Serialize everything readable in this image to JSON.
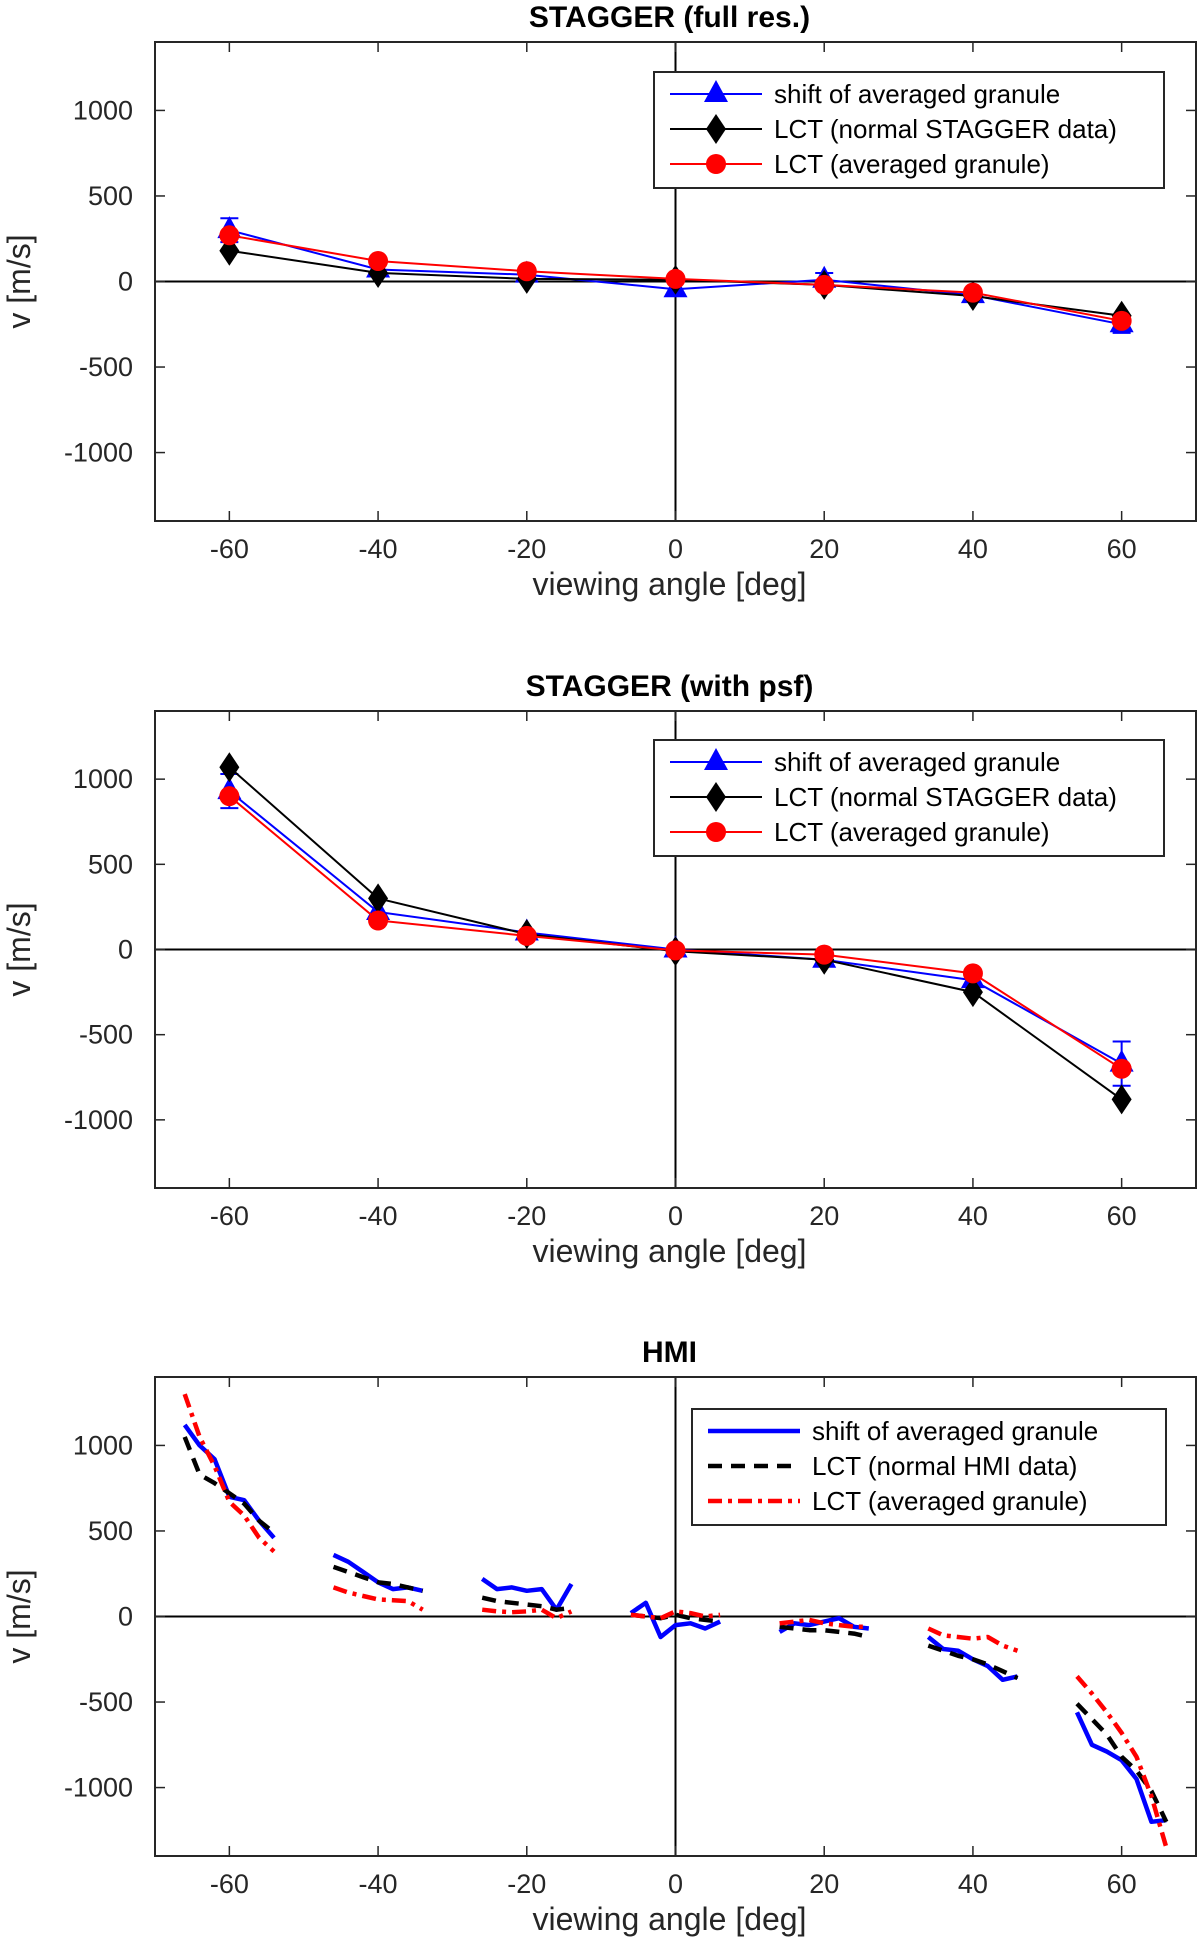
{
  "colors": {
    "blue": "#0000ff",
    "black": "#000000",
    "red": "#ff0000",
    "axis": "#262626"
  },
  "chart_data": [
    {
      "type": "line",
      "title": "STAGGER (full res.)",
      "xlabel": "viewing angle [deg]",
      "ylabel": "v [m/s]",
      "xlim": [
        -70,
        70
      ],
      "ylim": [
        -1400,
        1400
      ],
      "xticks": [
        -60,
        -40,
        -20,
        0,
        20,
        40,
        60
      ],
      "yticks": [
        -1000,
        -500,
        0,
        500,
        1000
      ],
      "xtick_labels": [
        "-60",
        "-40",
        "-20",
        "0",
        "20",
        "40",
        "60"
      ],
      "ytick_labels": [
        "-1000",
        "-500",
        "0",
        "500",
        "1000"
      ],
      "legend_position": "top-right",
      "series": [
        {
          "name": "shift of averaged granule",
          "color": "#0000ff",
          "marker": "triangle",
          "x": [
            -60,
            -40,
            -20,
            0,
            20,
            40,
            60
          ],
          "y": [
            300,
            70,
            40,
            -45,
            10,
            -80,
            -250
          ],
          "err": [
            70,
            0,
            0,
            0,
            40,
            0,
            50
          ]
        },
        {
          "name": "LCT (normal STAGGER data)",
          "color": "#000000",
          "marker": "diamond",
          "x": [
            -60,
            -40,
            -20,
            0,
            20,
            40,
            60
          ],
          "y": [
            180,
            50,
            15,
            10,
            -20,
            -85,
            -200
          ],
          "err": []
        },
        {
          "name": "LCT (averaged granule)",
          "color": "#ff0000",
          "marker": "circle",
          "x": [
            -60,
            -40,
            -20,
            0,
            20,
            40,
            60
          ],
          "y": [
            270,
            120,
            60,
            15,
            -20,
            -65,
            -230
          ],
          "err": []
        }
      ]
    },
    {
      "type": "line",
      "title": "STAGGER (with psf)",
      "xlabel": "viewing angle [deg]",
      "ylabel": "v [m/s]",
      "xlim": [
        -70,
        70
      ],
      "ylim": [
        -1400,
        1400
      ],
      "xticks": [
        -60,
        -40,
        -20,
        0,
        20,
        40,
        60
      ],
      "yticks": [
        -1000,
        -500,
        0,
        500,
        1000
      ],
      "xtick_labels": [
        "-60",
        "-40",
        "-20",
        "0",
        "20",
        "40",
        "60"
      ],
      "ytick_labels": [
        "-1000",
        "-500",
        "0",
        "500",
        "1000"
      ],
      "legend_position": "top-right",
      "series": [
        {
          "name": "shift of averaged granule",
          "color": "#0000ff",
          "marker": "triangle",
          "x": [
            -60,
            -40,
            -20,
            0,
            20,
            40,
            60
          ],
          "y": [
            930,
            220,
            100,
            0,
            -60,
            -180,
            -670
          ],
          "err": [
            100,
            0,
            0,
            0,
            0,
            0,
            130
          ]
        },
        {
          "name": "LCT (normal STAGGER data)",
          "color": "#000000",
          "marker": "diamond",
          "x": [
            -60,
            -40,
            -20,
            0,
            20,
            40,
            60
          ],
          "y": [
            1070,
            300,
            90,
            -10,
            -60,
            -250,
            -880
          ],
          "err": []
        },
        {
          "name": "LCT (averaged granule)",
          "color": "#ff0000",
          "marker": "circle",
          "x": [
            -60,
            -40,
            -20,
            0,
            20,
            40,
            60
          ],
          "y": [
            900,
            170,
            80,
            -5,
            -30,
            -140,
            -700
          ],
          "err": []
        }
      ]
    },
    {
      "type": "line",
      "title": "HMI",
      "xlabel": "viewing angle [deg]",
      "ylabel": "v [m/s]",
      "xlim": [
        -70,
        70
      ],
      "ylim": [
        -1400,
        1400
      ],
      "xticks": [
        -60,
        -40,
        -20,
        0,
        20,
        40,
        60
      ],
      "yticks": [
        -1000,
        -500,
        0,
        500,
        1000
      ],
      "xtick_labels": [
        "-60",
        "-40",
        "-20",
        "0",
        "20",
        "40",
        "60"
      ],
      "ytick_labels": [
        "-1000",
        "-500",
        "0",
        "500",
        "1000"
      ],
      "legend_position": "top-right",
      "series": [
        {
          "name": "shift of averaged granule",
          "color": "#0000ff",
          "dash": "solid",
          "segments": [
            [
              [
                -66,
                1120
              ],
              [
                -64,
                1000
              ],
              [
                -62,
                920
              ],
              [
                -60,
                700
              ],
              [
                -58,
                680
              ],
              [
                -56,
                560
              ],
              [
                -54,
                460
              ]
            ],
            [
              [
                -46,
                360
              ],
              [
                -44,
                320
              ],
              [
                -42,
                260
              ],
              [
                -40,
                200
              ],
              [
                -38,
                160
              ],
              [
                -36,
                170
              ],
              [
                -34,
                150
              ]
            ],
            [
              [
                -26,
                220
              ],
              [
                -24,
                160
              ],
              [
                -22,
                170
              ],
              [
                -20,
                150
              ],
              [
                -18,
                160
              ],
              [
                -16,
                40
              ],
              [
                -14,
                190
              ]
            ],
            [
              [
                -6,
                20
              ],
              [
                -4,
                80
              ],
              [
                -2,
                -120
              ],
              [
                0,
                -50
              ],
              [
                2,
                -40
              ],
              [
                4,
                -70
              ],
              [
                6,
                -30
              ]
            ],
            [
              [
                14,
                -90
              ],
              [
                16,
                -40
              ],
              [
                18,
                -50
              ],
              [
                20,
                -30
              ],
              [
                22,
                -10
              ],
              [
                24,
                -60
              ],
              [
                26,
                -70
              ]
            ],
            [
              [
                34,
                -120
              ],
              [
                36,
                -190
              ],
              [
                38,
                -200
              ],
              [
                40,
                -250
              ],
              [
                42,
                -290
              ],
              [
                44,
                -370
              ],
              [
                46,
                -350
              ]
            ],
            [
              [
                54,
                -560
              ],
              [
                56,
                -750
              ],
              [
                58,
                -790
              ],
              [
                60,
                -840
              ],
              [
                62,
                -950
              ],
              [
                64,
                -1200
              ],
              [
                66,
                -1190
              ]
            ]
          ]
        },
        {
          "name": "LCT (normal HMI data)",
          "color": "#000000",
          "dash": "dashed",
          "segments": [
            [
              [
                -66,
                1050
              ],
              [
                -64,
                830
              ],
              [
                -62,
                780
              ],
              [
                -60,
                720
              ],
              [
                -58,
                660
              ],
              [
                -56,
                560
              ],
              [
                -54,
                490
              ]
            ],
            [
              [
                -46,
                290
              ],
              [
                -44,
                260
              ],
              [
                -42,
                230
              ],
              [
                -40,
                200
              ],
              [
                -38,
                190
              ],
              [
                -36,
                170
              ],
              [
                -34,
                150
              ]
            ],
            [
              [
                -26,
                110
              ],
              [
                -24,
                90
              ],
              [
                -22,
                80
              ],
              [
                -20,
                70
              ],
              [
                -18,
                60
              ],
              [
                -16,
                40
              ],
              [
                -14,
                50
              ]
            ],
            [
              [
                -6,
                10
              ],
              [
                -4,
                0
              ],
              [
                -2,
                -10
              ],
              [
                0,
                10
              ],
              [
                2,
                -10
              ],
              [
                4,
                -20
              ],
              [
                6,
                -30
              ]
            ],
            [
              [
                14,
                -60
              ],
              [
                16,
                -70
              ],
              [
                18,
                -80
              ],
              [
                20,
                -80
              ],
              [
                22,
                -90
              ],
              [
                24,
                -100
              ],
              [
                26,
                -120
              ]
            ],
            [
              [
                34,
                -170
              ],
              [
                36,
                -200
              ],
              [
                38,
                -230
              ],
              [
                40,
                -250
              ],
              [
                42,
                -280
              ],
              [
                44,
                -320
              ],
              [
                46,
                -360
              ]
            ],
            [
              [
                54,
                -510
              ],
              [
                56,
                -600
              ],
              [
                58,
                -690
              ],
              [
                60,
                -820
              ],
              [
                62,
                -900
              ],
              [
                64,
                -1020
              ],
              [
                66,
                -1200
              ]
            ]
          ]
        },
        {
          "name": "LCT (averaged granule)",
          "color": "#ff0000",
          "dash": "dashdot",
          "segments": [
            [
              [
                -66,
                1300
              ],
              [
                -64,
                1050
              ],
              [
                -62,
                880
              ],
              [
                -60,
                670
              ],
              [
                -58,
                590
              ],
              [
                -56,
                460
              ],
              [
                -54,
                380
              ]
            ],
            [
              [
                -46,
                170
              ],
              [
                -44,
                140
              ],
              [
                -42,
                120
              ],
              [
                -40,
                100
              ],
              [
                -38,
                95
              ],
              [
                -36,
                90
              ],
              [
                -34,
                40
              ]
            ],
            [
              [
                -26,
                40
              ],
              [
                -24,
                30
              ],
              [
                -22,
                25
              ],
              [
                -20,
                30
              ],
              [
                -18,
                40
              ],
              [
                -16,
                -10
              ],
              [
                -14,
                30
              ]
            ],
            [
              [
                -6,
                10
              ],
              [
                -4,
                0
              ],
              [
                -2,
                -10
              ],
              [
                0,
                30
              ],
              [
                2,
                20
              ],
              [
                4,
                0
              ],
              [
                6,
                10
              ]
            ],
            [
              [
                14,
                -40
              ],
              [
                16,
                -30
              ],
              [
                18,
                -20
              ],
              [
                20,
                -40
              ],
              [
                22,
                -50
              ],
              [
                24,
                -60
              ],
              [
                26,
                -60
              ]
            ],
            [
              [
                34,
                -70
              ],
              [
                36,
                -110
              ],
              [
                38,
                -120
              ],
              [
                40,
                -130
              ],
              [
                42,
                -120
              ],
              [
                44,
                -170
              ],
              [
                46,
                -200
              ]
            ],
            [
              [
                54,
                -350
              ],
              [
                56,
                -450
              ],
              [
                58,
                -560
              ],
              [
                60,
                -680
              ],
              [
                62,
                -820
              ],
              [
                64,
                -1050
              ],
              [
                66,
                -1350
              ]
            ]
          ]
        }
      ]
    }
  ]
}
